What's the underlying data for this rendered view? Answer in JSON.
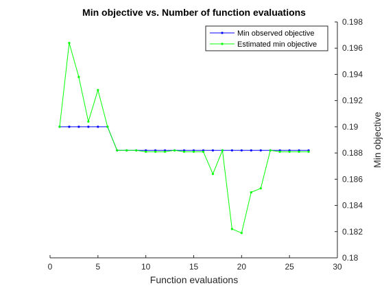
{
  "chart_data": {
    "type": "line",
    "title": "Min objective vs. Number of function evaluations",
    "xlabel": "Function evaluations",
    "ylabel": "Min objective",
    "xlim": [
      0,
      30
    ],
    "ylim": [
      0.18,
      0.198
    ],
    "x_ticks": [
      "0",
      "5",
      "10",
      "15",
      "20",
      "25",
      "30"
    ],
    "y_ticks": [
      "0.18",
      "0.182",
      "0.184",
      "0.186",
      "0.188",
      "0.19",
      "0.192",
      "0.194",
      "0.196",
      "0.198"
    ],
    "y_axis_location": "right",
    "grid": false,
    "legend_position": "top-right",
    "x": [
      1,
      2,
      3,
      4,
      5,
      6,
      7,
      8,
      9,
      10,
      11,
      12,
      13,
      14,
      15,
      16,
      17,
      18,
      19,
      20,
      21,
      22,
      23,
      24,
      25,
      26,
      27
    ],
    "series": [
      {
        "name": "Min observed objective",
        "color": "#0000ff",
        "values": [
          0.19,
          0.19,
          0.19,
          0.19,
          0.19,
          0.19,
          0.1882,
          0.1882,
          0.1882,
          0.1882,
          0.1882,
          0.1882,
          0.1882,
          0.1882,
          0.1882,
          0.1882,
          0.1882,
          0.1882,
          0.1882,
          0.1882,
          0.1882,
          0.1882,
          0.1882,
          0.1882,
          0.1882,
          0.1882,
          0.1882
        ]
      },
      {
        "name": "Estimated min objective",
        "color": "#00ff00",
        "values": [
          0.19,
          0.1964,
          0.1938,
          0.1904,
          0.1928,
          0.19,
          0.1882,
          0.1882,
          0.1882,
          0.1881,
          0.1881,
          0.1881,
          0.1882,
          0.1881,
          0.1881,
          0.1881,
          0.1864,
          0.1882,
          0.1822,
          0.1819,
          0.185,
          0.1853,
          0.1882,
          0.1881,
          0.1881,
          0.1881,
          0.1881
        ]
      }
    ]
  }
}
